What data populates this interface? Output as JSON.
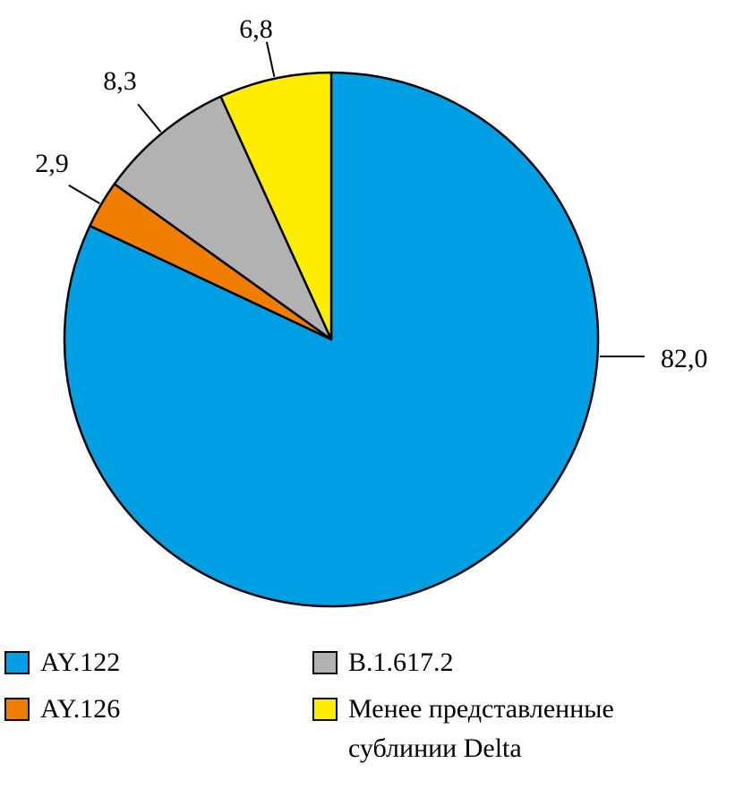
{
  "chart_data": {
    "type": "pie",
    "slices": [
      {
        "label": "AY.122",
        "value": 82.0,
        "display": "82,0",
        "color": "#009fe3"
      },
      {
        "label": "AY.126",
        "value": 2.9,
        "display": "2,9",
        "color": "#ee7d00"
      },
      {
        "label": "B.1.617.2",
        "value": 8.3,
        "display": "8,3",
        "color": "#b2b2b2"
      },
      {
        "label": "Менее представленные сублинии Delta",
        "value": 6.8,
        "display": "6,8",
        "color": "#ffed00"
      }
    ],
    "start": "12 o'clock",
    "direction": "clockwise",
    "legend_position": "bottom"
  },
  "legend": {
    "ay122": "AY.122",
    "ay126": "AY.126",
    "b16172": "B.1.617.2",
    "other_line1": "Менее представленные",
    "other_line2": "сублинии Delta"
  }
}
